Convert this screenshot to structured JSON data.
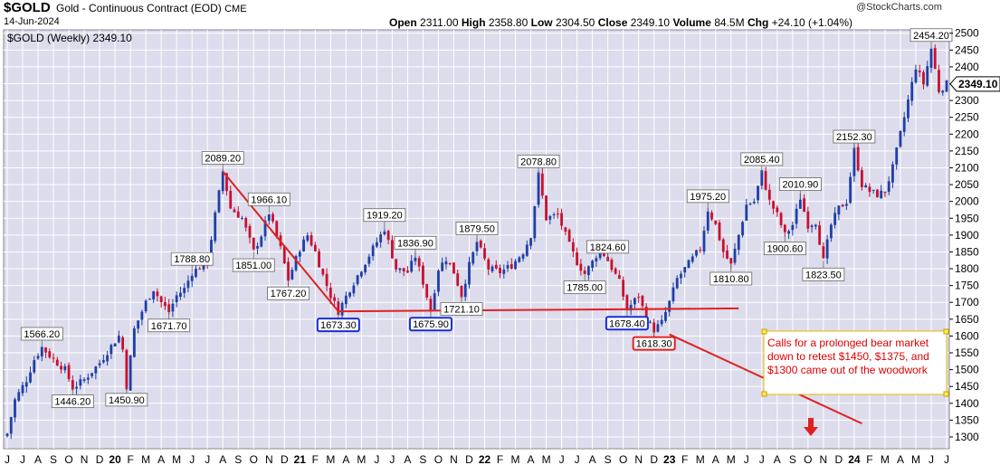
{
  "header": {
    "symbol": "$GOLD",
    "description": "Gold - Continuous Contract (EOD)",
    "exchange": "CME",
    "date": "14-Jun-2024",
    "brand": "@StockCharts.com",
    "quote": {
      "open_label": "Open",
      "open": "2311.00",
      "high_label": "High",
      "high": "2358.80",
      "low_label": "Low",
      "low": "2304.50",
      "close_label": "Close",
      "close": "2349.10",
      "volume_label": "Volume",
      "volume": "84.5M",
      "chg_label": "Chg",
      "chg": "+24.10 (+1.04%)"
    }
  },
  "legend": {
    "label": "$GOLD (Weekly) 2349.10"
  },
  "colors": {
    "up": "#1f3fa8",
    "down": "#c8102e",
    "trend": "#e02020",
    "panel": "#dcdcec",
    "grid": "#ffffff"
  },
  "chart_data": {
    "type": "candlestick",
    "ylim": [
      1265,
      2510
    ],
    "y_ticks": [
      1300,
      1350,
      1400,
      1450,
      1500,
      1550,
      1600,
      1650,
      1700,
      1750,
      1800,
      1850,
      1900,
      1950,
      2000,
      2050,
      2100,
      2150,
      2200,
      2250,
      2300,
      2350,
      2400,
      2450,
      2500
    ],
    "x_labels": [
      "J",
      "J",
      "A",
      "S",
      "O",
      "N",
      "D",
      "20",
      "F",
      "M",
      "A",
      "M",
      "J",
      "J",
      "A",
      "S",
      "O",
      "N",
      "D",
      "21",
      "F",
      "M",
      "A",
      "M",
      "J",
      "J",
      "A",
      "S",
      "O",
      "N",
      "D",
      "22",
      "F",
      "M",
      "A",
      "M",
      "J",
      "J",
      "A",
      "S",
      "O",
      "N",
      "D",
      "23",
      "F",
      "M",
      "A",
      "M",
      "J",
      "J",
      "A",
      "S",
      "O",
      "N",
      "D",
      "24",
      "F",
      "M",
      "A",
      "M",
      "J",
      "J"
    ],
    "current_price": "2349.10",
    "anchors": [
      [
        0,
        1310
      ],
      [
        2,
        1410
      ],
      [
        5,
        1470
      ],
      [
        7,
        1530
      ],
      [
        9,
        1566.2
      ],
      [
        12,
        1530
      ],
      [
        15,
        1500
      ],
      [
        17,
        1446.2
      ],
      [
        20,
        1470
      ],
      [
        24,
        1520
      ],
      [
        27,
        1570
      ],
      [
        29,
        1600
      ],
      [
        30,
        1560
      ],
      [
        31,
        1450.9
      ],
      [
        33,
        1620
      ],
      [
        36,
        1700
      ],
      [
        38,
        1740
      ],
      [
        40,
        1700
      ],
      [
        42,
        1671.7
      ],
      [
        44,
        1720
      ],
      [
        46,
        1740
      ],
      [
        48,
        1788.8
      ],
      [
        52,
        1820
      ],
      [
        54,
        1960
      ],
      [
        56,
        2089.2
      ],
      [
        58,
        1980
      ],
      [
        61,
        1950
      ],
      [
        64,
        1851
      ],
      [
        66,
        1900
      ],
      [
        68,
        1966.1
      ],
      [
        71,
        1860
      ],
      [
        73,
        1767.2
      ],
      [
        76,
        1860
      ],
      [
        78,
        1900
      ],
      [
        80,
        1850
      ],
      [
        82,
        1780
      ],
      [
        84,
        1720
      ],
      [
        86,
        1673.3
      ],
      [
        89,
        1740
      ],
      [
        92,
        1800
      ],
      [
        95,
        1860
      ],
      [
        98,
        1919.2
      ],
      [
        101,
        1800
      ],
      [
        104,
        1790
      ],
      [
        106,
        1836.9
      ],
      [
        108,
        1760
      ],
      [
        110,
        1675.9
      ],
      [
        112,
        1800
      ],
      [
        114,
        1830
      ],
      [
        116,
        1790
      ],
      [
        118,
        1721.1
      ],
      [
        120,
        1810
      ],
      [
        122,
        1879.5
      ],
      [
        125,
        1800
      ],
      [
        128,
        1790
      ],
      [
        131,
        1810
      ],
      [
        134,
        1850
      ],
      [
        136,
        1900
      ],
      [
        138,
        2078.8
      ],
      [
        140,
        1950
      ],
      [
        143,
        1960
      ],
      [
        146,
        1870
      ],
      [
        148,
        1820
      ],
      [
        150,
        1785
      ],
      [
        152,
        1820
      ],
      [
        154,
        1860
      ],
      [
        156,
        1824.6
      ],
      [
        159,
        1760
      ],
      [
        161,
        1678.4
      ],
      [
        164,
        1720
      ],
      [
        166,
        1650
      ],
      [
        168,
        1618.3
      ],
      [
        170,
        1640
      ],
      [
        172,
        1700
      ],
      [
        174,
        1770
      ],
      [
        176,
        1800
      ],
      [
        178,
        1830
      ],
      [
        180,
        1860
      ],
      [
        182,
        1975.2
      ],
      [
        184,
        1930
      ],
      [
        186,
        1850
      ],
      [
        188,
        1810.8
      ],
      [
        190,
        1900
      ],
      [
        192,
        1990
      ],
      [
        194,
        2000
      ],
      [
        196,
        2085.4
      ],
      [
        198,
        2000
      ],
      [
        200,
        1960
      ],
      [
        202,
        1900.6
      ],
      [
        204,
        1930
      ],
      [
        206,
        2010.9
      ],
      [
        208,
        1930
      ],
      [
        210,
        1940
      ],
      [
        212,
        1823.5
      ],
      [
        214,
        1930
      ],
      [
        216,
        1980
      ],
      [
        218,
        2000
      ],
      [
        220,
        2152.3
      ],
      [
        222,
        2050
      ],
      [
        224,
        2030
      ],
      [
        226,
        2020
      ],
      [
        228,
        2030
      ],
      [
        230,
        2100
      ],
      [
        232,
        2200
      ],
      [
        234,
        2300
      ],
      [
        236,
        2400
      ],
      [
        238,
        2350
      ],
      [
        240,
        2454.2
      ],
      [
        242,
        2330
      ],
      [
        244,
        2349.1
      ]
    ],
    "peak_labels": [
      {
        "week": 9,
        "price": 1566.2,
        "text": "1566.20",
        "pos": "above"
      },
      {
        "week": 17,
        "price": 1446.2,
        "text": "1446.20",
        "pos": "below"
      },
      {
        "week": 31,
        "price": 1450.9,
        "text": "1450.90",
        "pos": "below"
      },
      {
        "week": 48,
        "price": 1788.8,
        "text": "1788.80",
        "pos": "above"
      },
      {
        "week": 42,
        "price": 1671.7,
        "text": "1671.70",
        "pos": "below"
      },
      {
        "week": 56,
        "price": 2089.2,
        "text": "2089.20",
        "pos": "above"
      },
      {
        "week": 64,
        "price": 1851.0,
        "text": "1851.00",
        "pos": "below"
      },
      {
        "week": 68,
        "price": 1966.1,
        "text": "1966.10",
        "pos": "above"
      },
      {
        "week": 73,
        "price": 1767.2,
        "text": "1767.20",
        "pos": "below"
      },
      {
        "week": 86,
        "price": 1673.3,
        "text": "1673.30",
        "pos": "below",
        "box": "blue"
      },
      {
        "week": 98,
        "price": 1919.2,
        "text": "1919.20",
        "pos": "above"
      },
      {
        "week": 106,
        "price": 1836.9,
        "text": "1836.90",
        "pos": "above"
      },
      {
        "week": 110,
        "price": 1675.9,
        "text": "1675.90",
        "pos": "below",
        "box": "blue"
      },
      {
        "week": 118,
        "price": 1721.1,
        "text": "1721.10",
        "pos": "below"
      },
      {
        "week": 122,
        "price": 1879.5,
        "text": "1879.50",
        "pos": "above"
      },
      {
        "week": 138,
        "price": 2078.8,
        "text": "2078.80",
        "pos": "above"
      },
      {
        "week": 150,
        "price": 1785.0,
        "text": "1785.00",
        "pos": "below"
      },
      {
        "week": 156,
        "price": 1824.6,
        "text": "1824.60",
        "pos": "above"
      },
      {
        "week": 161,
        "price": 1678.4,
        "text": "1678.40",
        "pos": "below",
        "box": "blue"
      },
      {
        "week": 168,
        "price": 1618.3,
        "text": "1618.30",
        "pos": "below",
        "box": "red"
      },
      {
        "week": 182,
        "price": 1975.2,
        "text": "1975.20",
        "pos": "above"
      },
      {
        "week": 188,
        "price": 1810.8,
        "text": "1810.80",
        "pos": "below"
      },
      {
        "week": 196,
        "price": 2085.4,
        "text": "2085.40",
        "pos": "above"
      },
      {
        "week": 202,
        "price": 1900.6,
        "text": "1900.60",
        "pos": "below"
      },
      {
        "week": 206,
        "price": 2010.9,
        "text": "2010.90",
        "pos": "above"
      },
      {
        "week": 212,
        "price": 1823.5,
        "text": "1823.50",
        "pos": "below"
      },
      {
        "week": 220,
        "price": 2152.3,
        "text": "2152.30",
        "pos": "above"
      },
      {
        "week": 240,
        "price": 2454.2,
        "text": "2454.20",
        "pos": "above"
      }
    ],
    "trend_lines": [
      {
        "name": "downtrend",
        "from": [
          56,
          2089.2
        ],
        "to": [
          86,
          1673.3
        ]
      },
      {
        "name": "support",
        "from": [
          86,
          1673.3
        ],
        "to": [
          190,
          1682
        ]
      },
      {
        "name": "bear-forecast",
        "from": [
          172,
          1605
        ],
        "to": [
          222,
          1340
        ]
      }
    ],
    "annotation": "Calls for a prolonged bear market down to retest $1450, $1375, and $1300 came out of the woodwork"
  }
}
